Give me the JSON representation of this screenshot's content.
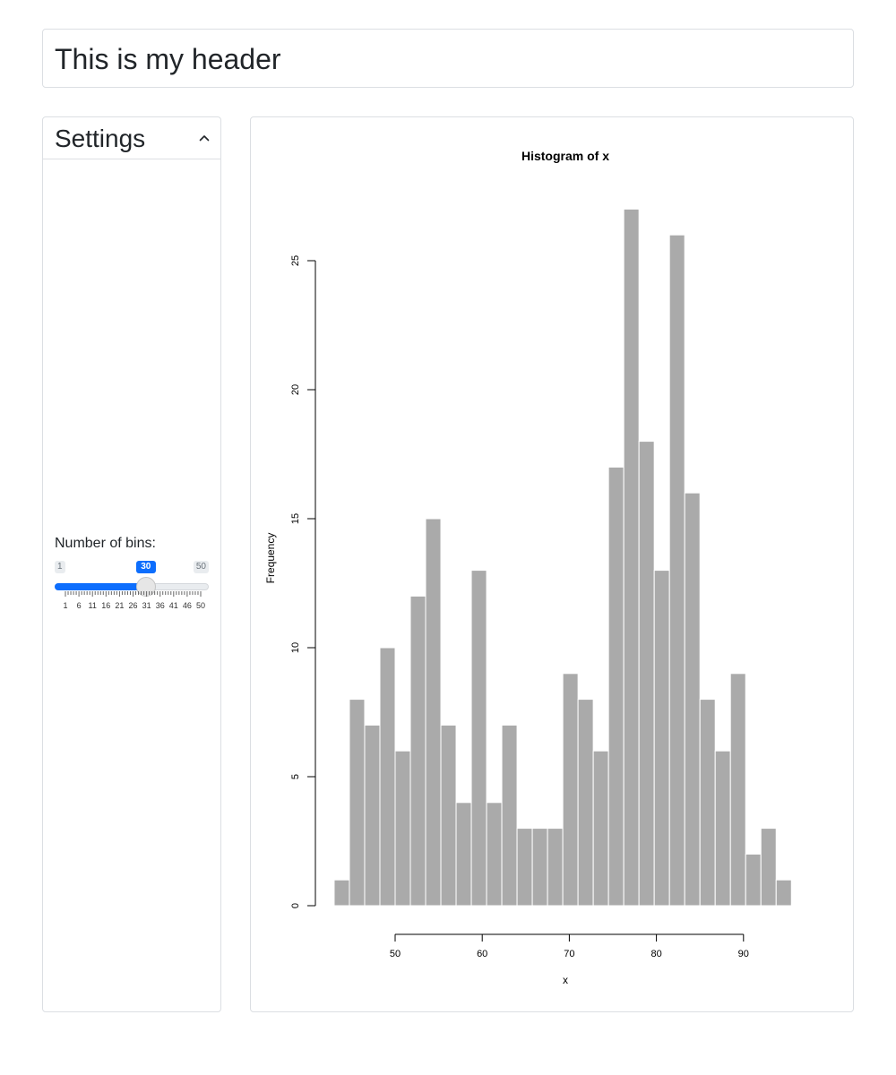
{
  "header": {
    "title": "This is my header"
  },
  "sidebar": {
    "title": "Settings",
    "collapse_icon": "chevron-up-icon",
    "bins": {
      "label": "Number of bins:",
      "min": "1",
      "max": "50",
      "value": "30",
      "value_fraction": 0.592,
      "tick_labels": [
        "1",
        "6",
        "11",
        "16",
        "21",
        "26",
        "31",
        "36",
        "41",
        "46",
        "50"
      ]
    }
  },
  "colors": {
    "accent": "#0d6efd",
    "bar_fill": "#aaaaaa",
    "bar_border": "#ffffff"
  },
  "chart_data": {
    "type": "bar",
    "title": "Histogram of x",
    "xlabel": "x",
    "ylabel": "Frequency",
    "bin_width": 1.75,
    "bin_start": 43.0,
    "values": [
      1,
      8,
      7,
      10,
      6,
      12,
      15,
      7,
      4,
      13,
      4,
      7,
      3,
      3,
      3,
      9,
      8,
      6,
      17,
      27,
      18,
      13,
      26,
      16,
      8,
      6,
      9,
      2,
      3,
      1
    ],
    "xticks": [
      50,
      60,
      70,
      80,
      90
    ],
    "yticks": [
      0,
      5,
      10,
      15,
      20,
      25
    ],
    "xlim": [
      43,
      96
    ],
    "ylim": [
      0,
      27
    ],
    "grid": false
  }
}
